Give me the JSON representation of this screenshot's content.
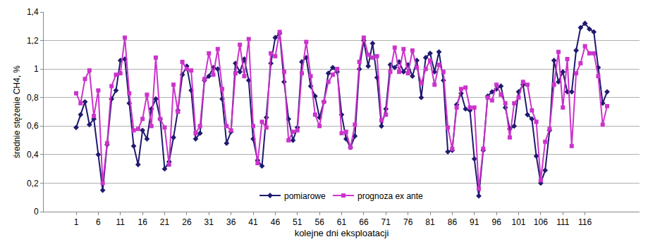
{
  "chart_data": {
    "type": "line",
    "x_label": "kolejne dni eksploatacji",
    "y_label": "średnie stężenie CH4, %",
    "categories": [
      "1",
      null,
      null,
      null,
      null,
      "6",
      null,
      null,
      null,
      null,
      "11",
      null,
      null,
      null,
      null,
      "16",
      null,
      null,
      null,
      null,
      "21",
      null,
      null,
      null,
      null,
      "26",
      null,
      null,
      null,
      null,
      "31",
      null,
      null,
      null,
      null,
      "36",
      null,
      null,
      null,
      null,
      "41",
      null,
      null,
      null,
      null,
      "46",
      null,
      null,
      null,
      null,
      "51",
      null,
      null,
      null,
      null,
      "56",
      null,
      null,
      null,
      null,
      "61",
      null,
      null,
      null,
      null,
      "66",
      null,
      null,
      null,
      null,
      "71",
      null,
      null,
      null,
      null,
      "76",
      null,
      null,
      null,
      null,
      "81",
      null,
      null,
      null,
      null,
      "86",
      null,
      null,
      null,
      null,
      "91",
      null,
      null,
      null,
      null,
      "96",
      null,
      null,
      null,
      null,
      "101",
      null,
      null,
      null,
      null,
      "106",
      null,
      null,
      null,
      null,
      "111",
      null,
      null,
      null,
      null,
      "116",
      null,
      null,
      null,
      null,
      null
    ],
    "series": [
      {
        "name": "pomiarowe",
        "color": "#1f1a6e",
        "marker": "diamond",
        "values": [
          0.59,
          0.68,
          0.77,
          0.61,
          0.65,
          0.4,
          0.15,
          0.47,
          0.79,
          0.85,
          1.06,
          1.07,
          0.76,
          0.46,
          0.33,
          0.57,
          0.51,
          0.72,
          0.79,
          0.65,
          0.3,
          0.35,
          0.52,
          0.71,
          0.96,
          1.02,
          0.85,
          0.51,
          0.55,
          0.92,
          0.95,
          1.01,
          1.0,
          0.79,
          0.48,
          0.56,
          1.04,
          0.98,
          1.07,
          0.92,
          0.51,
          0.36,
          0.32,
          0.66,
          1.04,
          1.22,
          1.25,
          0.91,
          0.65,
          0.5,
          0.59,
          1.05,
          1.08,
          0.88,
          0.81,
          0.66,
          0.77,
          0.97,
          1.01,
          0.98,
          0.68,
          0.51,
          0.45,
          0.53,
          1.0,
          1.2,
          1.02,
          1.18,
          0.94,
          0.6,
          0.72,
          1.03,
          1.01,
          1.05,
          0.98,
          1.03,
          0.95,
          1.06,
          0.8,
          1.08,
          1.11,
          0.98,
          1.12,
          0.92,
          0.42,
          0.43,
          0.75,
          0.83,
          0.72,
          0.71,
          0.37,
          0.11,
          0.43,
          0.81,
          0.84,
          0.86,
          0.88,
          0.73,
          0.58,
          0.6,
          0.84,
          0.89,
          0.68,
          0.65,
          0.39,
          0.2,
          0.29,
          0.57,
          1.06,
          0.91,
          0.98,
          0.84,
          0.84,
          1.13,
          1.29,
          1.32,
          1.28,
          1.26,
          1.01,
          0.76,
          0.84
        ]
      },
      {
        "name": "prognoza ex ante",
        "color": "#cc33cc",
        "marker": "square",
        "values": [
          0.83,
          0.76,
          0.93,
          0.99,
          0.67,
          0.85,
          0.2,
          0.48,
          0.88,
          0.96,
          0.97,
          1.22,
          0.83,
          0.57,
          0.58,
          0.65,
          0.82,
          0.6,
          1.08,
          0.65,
          0.59,
          0.33,
          0.89,
          0.7,
          1.05,
          1.0,
          0.99,
          0.55,
          0.6,
          0.93,
          1.11,
          0.96,
          1.14,
          0.86,
          0.6,
          0.57,
          0.97,
          1.17,
          0.95,
          1.21,
          0.6,
          0.34,
          0.63,
          0.59,
          1.11,
          1.09,
          1.26,
          0.98,
          0.5,
          0.56,
          0.57,
          0.97,
          1.19,
          0.95,
          0.68,
          0.6,
          0.77,
          0.91,
          0.96,
          1.0,
          0.55,
          0.56,
          0.45,
          0.61,
          1.05,
          1.22,
          1.1,
          1.08,
          1.09,
          0.64,
          0.68,
          0.98,
          1.15,
          0.98,
          1.14,
          0.97,
          1.13,
          1.01,
          0.9,
          1.0,
          1.06,
          0.89,
          1.03,
          0.98,
          0.59,
          0.44,
          0.73,
          0.86,
          0.87,
          0.73,
          0.73,
          0.16,
          0.44,
          0.8,
          0.78,
          0.89,
          0.82,
          0.76,
          0.52,
          0.76,
          0.8,
          0.91,
          0.89,
          0.71,
          0.63,
          0.22,
          0.49,
          0.58,
          0.89,
          1.12,
          0.73,
          1.07,
          0.46,
          0.97,
          1.04,
          1.16,
          1.11,
          1.11,
          0.95,
          0.61,
          0.74
        ]
      }
    ],
    "ylim": [
      0,
      1.4
    ],
    "yticks": [
      0,
      {
        "value": 0.2,
        "label": "0,2"
      },
      {
        "value": 0.4,
        "label": "0,4"
      },
      {
        "value": 0.6,
        "label": "0,6"
      },
      {
        "value": 0.8,
        "label": "0,8"
      },
      1,
      {
        "value": 1.2,
        "label": "1,2"
      },
      {
        "value": 1.4,
        "label": "1,4"
      }
    ],
    "grid": true,
    "legend": "bottom"
  }
}
